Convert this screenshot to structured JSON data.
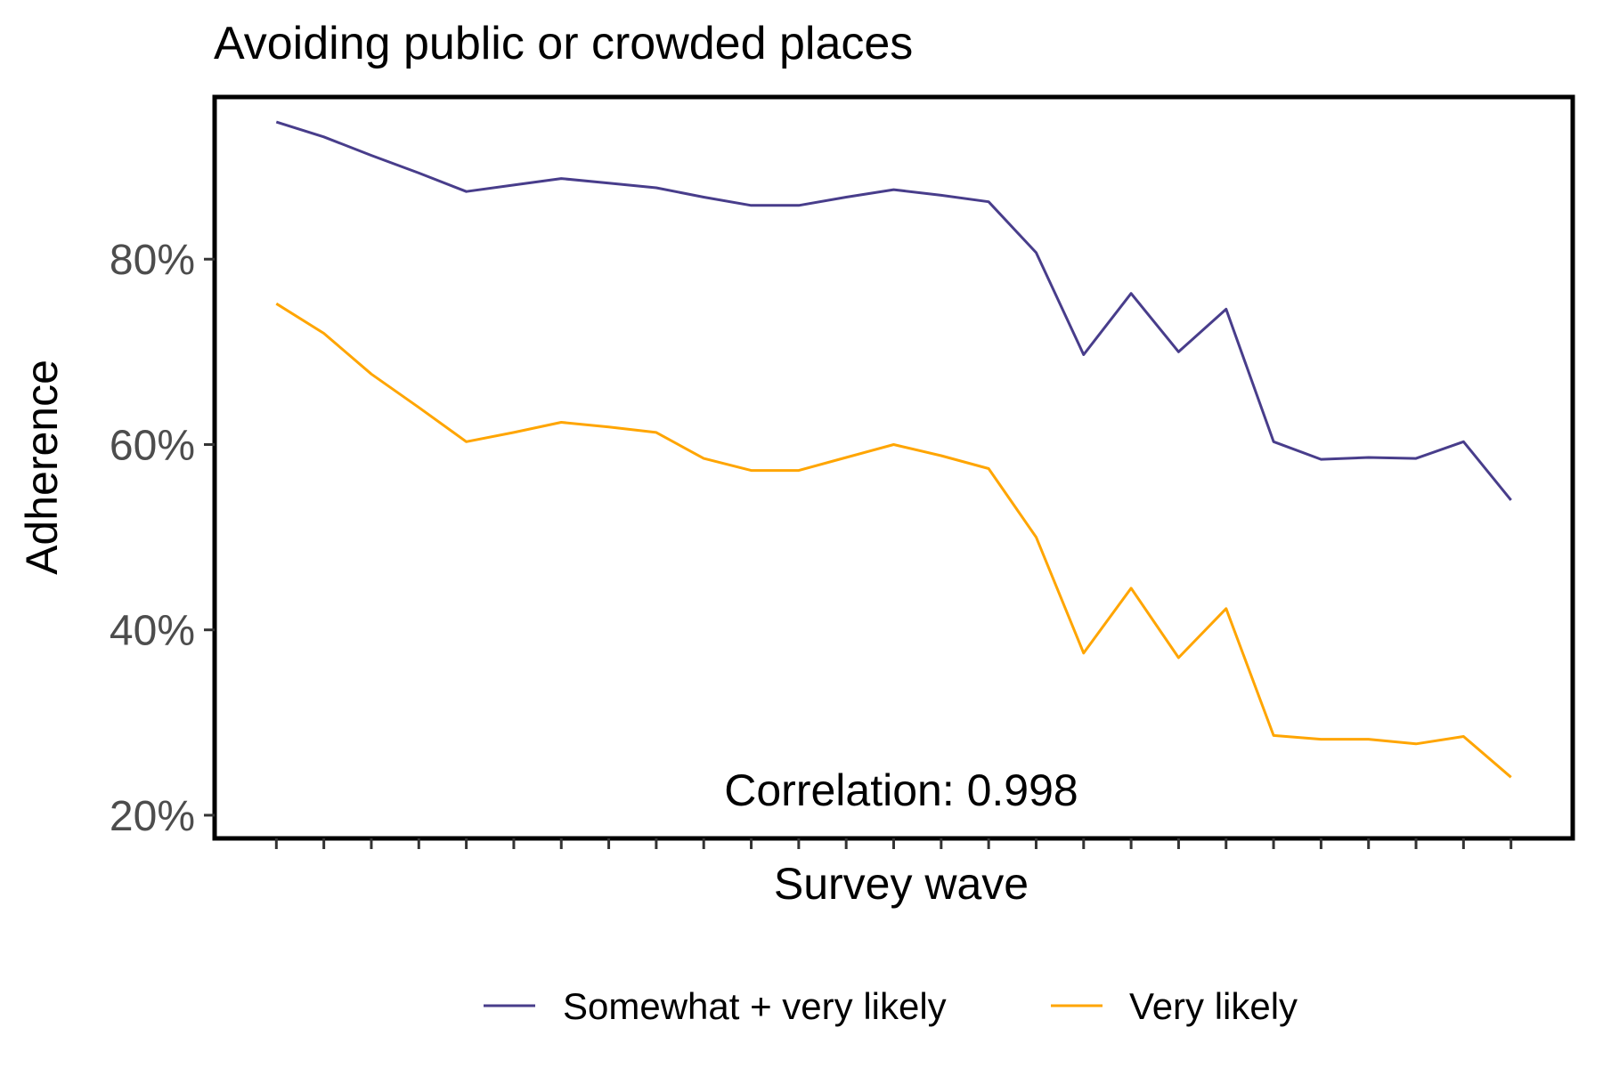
{
  "chart_data": {
    "type": "line",
    "title": "Avoiding public or crowded places",
    "xlabel": "Survey wave",
    "ylabel": "Adherence",
    "ylim": [
      17.5,
      97.5
    ],
    "yticks": [
      20,
      40,
      60,
      80
    ],
    "ytick_labels": [
      "20%",
      "40%",
      "60%",
      "80%"
    ],
    "x": [
      1,
      2,
      3,
      4,
      5,
      6,
      7,
      8,
      9,
      10,
      11,
      12,
      13,
      14,
      15,
      16,
      17,
      18,
      19,
      20,
      21,
      22,
      23,
      24,
      25,
      26,
      27
    ],
    "xlim": [
      -0.3,
      28.3
    ],
    "grid": false,
    "legend_position": "bottom",
    "annotation": "Correlation: 0.998",
    "series": [
      {
        "name": "Somewhat + very likely",
        "color": "#483d8b",
        "values": [
          94.8,
          93.2,
          91.2,
          89.3,
          87.3,
          88.0,
          88.7,
          88.2,
          87.7,
          86.7,
          85.8,
          85.8,
          86.7,
          87.5,
          86.9,
          86.2,
          80.7,
          69.7,
          76.3,
          70.0,
          74.6,
          60.3,
          58.4,
          58.6,
          58.5,
          60.3,
          54.0
        ]
      },
      {
        "name": "Very likely",
        "color": "#ffa500",
        "values": [
          75.2,
          72.0,
          67.6,
          64.0,
          60.3,
          61.3,
          62.4,
          61.9,
          61.3,
          58.5,
          57.2,
          57.2,
          58.6,
          60.0,
          58.8,
          57.4,
          50.0,
          37.5,
          44.5,
          37.0,
          42.3,
          28.6,
          28.2,
          28.2,
          27.7,
          28.5,
          24.1
        ]
      }
    ]
  }
}
